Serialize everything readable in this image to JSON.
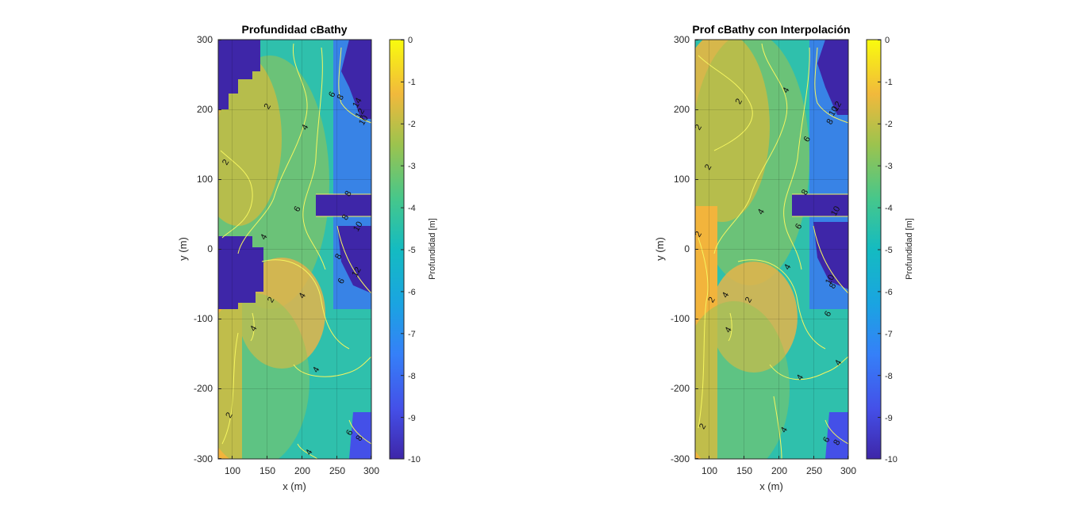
{
  "figure": {
    "background": "#ffffff",
    "colormap": "parula"
  },
  "chart_data": [
    {
      "type": "heatmap",
      "title": "Profundidad cBathy",
      "xlabel": "x (m)",
      "ylabel": "y (m)",
      "xlim": [
        80,
        300
      ],
      "ylim": [
        -300,
        300
      ],
      "xticks": [
        100,
        150,
        200,
        250,
        300
      ],
      "yticks": [
        -300,
        -200,
        -100,
        0,
        100,
        200,
        300
      ],
      "grid": true,
      "colorbar": {
        "label": "Profundidad [m]",
        "limits": [
          -10,
          0
        ],
        "ticks": [
          0,
          -1,
          -2,
          -3,
          -4,
          -5,
          -6,
          -7,
          -8,
          -9,
          -10
        ]
      },
      "contour_levels": [
        2,
        4,
        6,
        8,
        10,
        12,
        14
      ],
      "masked_regions_depth": -10,
      "contour_labels": [
        {
          "text": "2",
          "x": 150,
          "y": 205
        },
        {
          "text": "4",
          "x": 204,
          "y": 175
        },
        {
          "text": "6",
          "x": 243,
          "y": 222
        },
        {
          "text": "8",
          "x": 255,
          "y": 218
        },
        {
          "text": "14",
          "x": 279,
          "y": 210
        },
        {
          "text": "12",
          "x": 283,
          "y": 195
        },
        {
          "text": "10",
          "x": 288,
          "y": 185
        },
        {
          "text": "2",
          "x": 90,
          "y": 125
        },
        {
          "text": "8",
          "x": 266,
          "y": 80
        },
        {
          "text": "6",
          "x": 193,
          "y": 58
        },
        {
          "text": "8",
          "x": 262,
          "y": 46
        },
        {
          "text": "10",
          "x": 280,
          "y": 33
        },
        {
          "text": "4",
          "x": 145,
          "y": 18
        },
        {
          "text": "8",
          "x": 252,
          "y": -10
        },
        {
          "text": "12",
          "x": 278,
          "y": -32
        },
        {
          "text": "6",
          "x": 256,
          "y": -45
        },
        {
          "text": "2",
          "x": 155,
          "y": -72
        },
        {
          "text": "4",
          "x": 200,
          "y": -66
        },
        {
          "text": "4",
          "x": 130,
          "y": -113
        },
        {
          "text": "4",
          "x": 220,
          "y": -172
        },
        {
          "text": "2",
          "x": 95,
          "y": -237
        },
        {
          "text": "6",
          "x": 268,
          "y": -262
        },
        {
          "text": "8",
          "x": 282,
          "y": -270
        },
        {
          "text": "4",
          "x": 210,
          "y": -290
        }
      ]
    },
    {
      "type": "heatmap",
      "title": "Prof cBathy con Interpolación",
      "xlabel": "x (m)",
      "ylabel": "y (m)",
      "xlim": [
        80,
        300
      ],
      "ylim": [
        -300,
        300
      ],
      "xticks": [
        100,
        150,
        200,
        250,
        300
      ],
      "yticks": [
        -300,
        -200,
        -100,
        0,
        100,
        200,
        300
      ],
      "grid": true,
      "colorbar": {
        "label": "Profundidad [m]",
        "limits": [
          -10,
          0
        ],
        "ticks": [
          0,
          -1,
          -2,
          -3,
          -4,
          -5,
          -6,
          -7,
          -8,
          -9,
          -10
        ]
      },
      "contour_levels": [
        2,
        4,
        6,
        8,
        10,
        12,
        14
      ],
      "contour_labels": [
        {
          "text": "4",
          "x": 210,
          "y": 228
        },
        {
          "text": "2",
          "x": 142,
          "y": 212
        },
        {
          "text": "12",
          "x": 283,
          "y": 205
        },
        {
          "text": "10",
          "x": 278,
          "y": 198
        },
        {
          "text": "8",
          "x": 273,
          "y": 183
        },
        {
          "text": "2",
          "x": 84,
          "y": 175
        },
        {
          "text": "6",
          "x": 240,
          "y": 158
        },
        {
          "text": "2",
          "x": 98,
          "y": 118
        },
        {
          "text": "8",
          "x": 237,
          "y": 82
        },
        {
          "text": "4",
          "x": 174,
          "y": 54
        },
        {
          "text": "10",
          "x": 281,
          "y": 55
        },
        {
          "text": "6",
          "x": 228,
          "y": 33
        },
        {
          "text": "2",
          "x": 84,
          "y": 22
        },
        {
          "text": "4",
          "x": 212,
          "y": -25
        },
        {
          "text": "10",
          "x": 273,
          "y": -43
        },
        {
          "text": "8",
          "x": 277,
          "y": -52
        },
        {
          "text": "4",
          "x": 123,
          "y": -65
        },
        {
          "text": "2",
          "x": 103,
          "y": -72
        },
        {
          "text": "2",
          "x": 156,
          "y": -72
        },
        {
          "text": "6",
          "x": 270,
          "y": -92
        },
        {
          "text": "4",
          "x": 127,
          "y": -115
        },
        {
          "text": "4",
          "x": 285,
          "y": -162
        },
        {
          "text": "4",
          "x": 230,
          "y": -183
        },
        {
          "text": "2",
          "x": 90,
          "y": -253
        },
        {
          "text": "4",
          "x": 207,
          "y": -258
        },
        {
          "text": "6",
          "x": 268,
          "y": -272
        },
        {
          "text": "8",
          "x": 283,
          "y": -276
        }
      ]
    }
  ]
}
